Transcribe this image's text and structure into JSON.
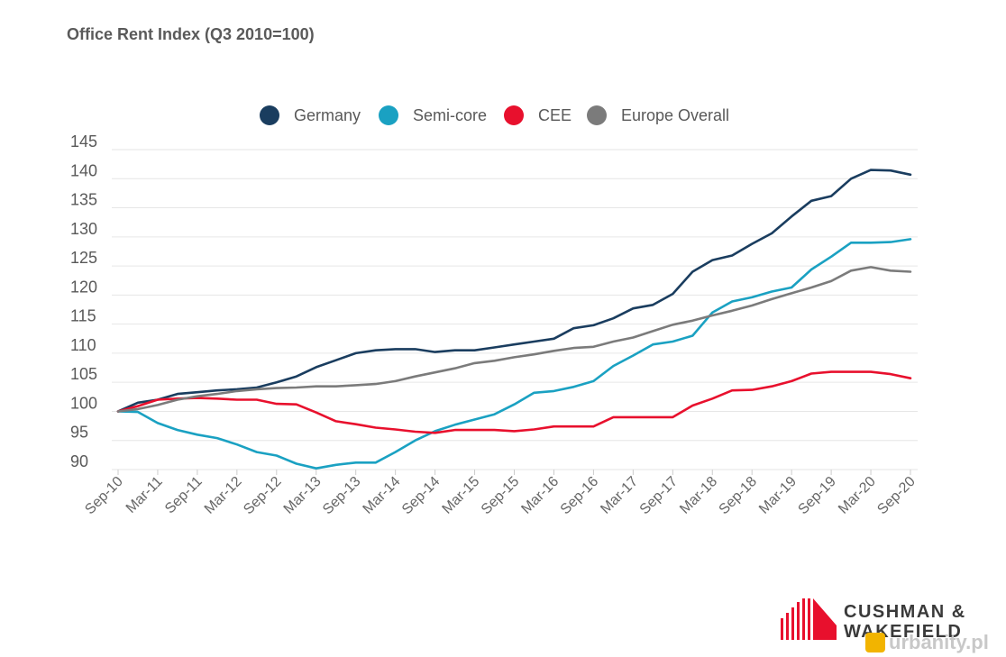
{
  "chart_data": {
    "type": "line",
    "title": "Office Rent Index (Q3 2010=100)",
    "xlabel": "",
    "ylabel": "",
    "ylim": [
      90,
      145
    ],
    "yticks": [
      90,
      95,
      100,
      105,
      110,
      115,
      120,
      125,
      130,
      135,
      140,
      145
    ],
    "x_tick_labels": [
      "Sep-10",
      "Mar-11",
      "Sep-11",
      "Mar-12",
      "Sep-12",
      "Mar-13",
      "Sep-13",
      "Mar-14",
      "Sep-14",
      "Mar-15",
      "Sep-15",
      "Mar-16",
      "Sep-16",
      "Mar-17",
      "Sep-17",
      "Mar-18",
      "Sep-18",
      "Mar-19",
      "Sep-19",
      "Mar-20",
      "Sep-20"
    ],
    "x": [
      "Sep-10",
      "Dec-10",
      "Mar-11",
      "Jun-11",
      "Sep-11",
      "Dec-11",
      "Mar-12",
      "Jun-12",
      "Sep-12",
      "Dec-12",
      "Mar-13",
      "Jun-13",
      "Sep-13",
      "Dec-13",
      "Mar-14",
      "Jun-14",
      "Sep-14",
      "Dec-14",
      "Mar-15",
      "Jun-15",
      "Sep-15",
      "Dec-15",
      "Mar-16",
      "Jun-16",
      "Sep-16",
      "Dec-16",
      "Mar-17",
      "Jun-17",
      "Sep-17",
      "Dec-17",
      "Mar-18",
      "Jun-18",
      "Sep-18",
      "Dec-18",
      "Mar-19",
      "Jun-19",
      "Sep-19",
      "Dec-19",
      "Mar-20",
      "Jun-20",
      "Sep-20"
    ],
    "legend_position": "top",
    "grid": true,
    "series": [
      {
        "name": "Germany",
        "color": "#1a3d5f",
        "values": [
          100,
          101.5,
          102,
          103,
          103.3,
          103.6,
          103.8,
          104.1,
          105,
          106,
          107.6,
          108.8,
          110,
          110.5,
          110.7,
          110.7,
          110.2,
          110.5,
          110.5,
          111,
          111.5,
          112,
          112.5,
          114.3,
          114.8,
          116,
          117.7,
          118.3,
          120.2,
          124,
          126,
          126.8,
          128.8,
          130.6,
          133.5,
          136.2,
          137,
          140,
          141.5,
          141.4,
          140.7
        ]
      },
      {
        "name": "Semi-core",
        "color": "#1aa1c2",
        "values": [
          100,
          99.9,
          98,
          96.8,
          96,
          95.4,
          94.3,
          93,
          92.4,
          91,
          90.2,
          90.8,
          91.2,
          91.2,
          93,
          95,
          96.6,
          97.7,
          98.6,
          99.5,
          101.2,
          103.2,
          103.5,
          104.2,
          105.2,
          107.8,
          109.6,
          111.5,
          112,
          113,
          117,
          118.9,
          119.6,
          120.6,
          121.3,
          124.4,
          126.6,
          129,
          129,
          129.1,
          129.6
        ]
      },
      {
        "name": "CEE",
        "color": "#e8102d",
        "values": [
          100,
          100.9,
          102,
          102.2,
          102.3,
          102.2,
          102,
          102,
          101.3,
          101.2,
          99.8,
          98.3,
          97.8,
          97.2,
          96.9,
          96.5,
          96.3,
          96.8,
          96.8,
          96.8,
          96.6,
          96.9,
          97.4,
          97.4,
          97.4,
          99,
          99,
          99,
          99,
          101,
          102.2,
          103.6,
          103.7,
          104.3,
          105.2,
          106.5,
          106.8,
          106.8,
          106.8,
          106.4,
          105.7
        ]
      },
      {
        "name": "Europe Overall",
        "color": "#7b7b7b",
        "values": [
          100,
          100.4,
          101.1,
          102,
          102.6,
          103,
          103.5,
          103.8,
          104,
          104.1,
          104.3,
          104.3,
          104.5,
          104.7,
          105.2,
          106,
          106.7,
          107.4,
          108.3,
          108.7,
          109.3,
          109.8,
          110.4,
          110.9,
          111.1,
          112,
          112.7,
          113.8,
          114.9,
          115.6,
          116.5,
          117.3,
          118.2,
          119.3,
          120.3,
          121.3,
          122.4,
          124.2,
          124.8,
          124.2,
          124
        ]
      }
    ]
  },
  "brand": {
    "name_line1": "CUSHMAN &",
    "name_line2": "WAKEFIELD"
  },
  "watermark": {
    "text": "urbanity.pl"
  }
}
